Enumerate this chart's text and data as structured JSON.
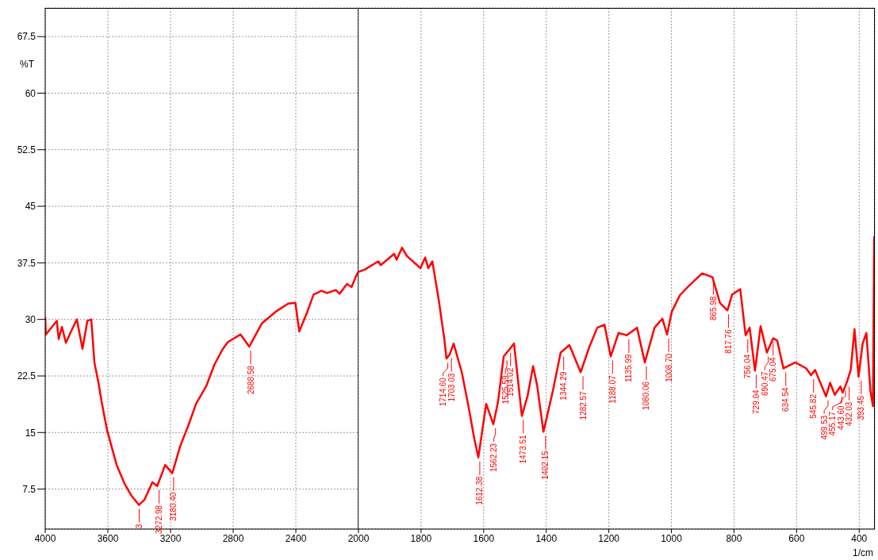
{
  "chart_data": [
    {
      "type": "line",
      "ylabel": "%T",
      "x": [
        4000,
        3996,
        3926,
        3914,
        3893,
        3868,
        3833,
        3798,
        3762,
        3731,
        3706,
        3696,
        3686,
        3660,
        3640,
        3605,
        3544,
        3493,
        3452,
        3402,
        3366,
        3316,
        3285,
        3234,
        3189,
        3138,
        3087,
        3037,
        2971,
        2920,
        2869,
        2834,
        2753,
        2697,
        2616,
        2530,
        2449,
        2403,
        2378,
        2327,
        2287,
        2236,
        2201,
        2145,
        2120,
        2074,
        2044,
        2010,
        2000
      ],
      "series": [
        {
          "color": "#ff0000",
          "values": [
            30.3,
            28,
            29.8,
            27.4,
            29,
            26.9,
            28.5,
            30,
            26.1,
            29.8,
            30,
            27.2,
            24.3,
            21.6,
            19.1,
            15.3,
            10.7,
            8.2,
            6.7,
            5.4,
            6.1,
            8.4,
            7.9,
            10.7,
            9.6,
            13.2,
            15.9,
            18.8,
            21.2,
            24,
            26,
            27,
            28,
            26.4,
            29.5,
            31,
            32.1,
            32.2,
            28.4,
            31,
            33.3,
            33.8,
            33.5,
            33.9,
            33.4,
            34.7,
            34.3,
            36,
            36.3
          ]
        }
      ],
      "xlim": [
        4000,
        2000
      ],
      "ylim": [
        2.2,
        71.3
      ],
      "xticks": [
        4000,
        3600,
        3200,
        2800,
        2400
      ],
      "yticks": [
        7.5,
        15,
        22.5,
        30,
        37.5,
        45,
        52.5,
        60,
        67.5
      ],
      "grid": true,
      "marker": "none",
      "line_style": "solid",
      "annotations": [
        {
          "text": "3",
          "x": 3400,
          "y": 5.4
        },
        {
          "text": "3272.98",
          "x": 3272.98,
          "y": 7.9
        },
        {
          "text": "3180.40",
          "x": 3180.4,
          "y": 9.6
        },
        {
          "text": "2688.58",
          "x": 2688.58,
          "y": 26.4
        }
      ]
    },
    {
      "type": "line",
      "xlabel": "1/cm",
      "tick_labels": "x",
      "x": [
        2000,
        1980,
        1937,
        1929,
        1886,
        1878,
        1861,
        1845,
        1802,
        1787,
        1777,
        1764,
        1744,
        1726,
        1719,
        1708,
        1696,
        1670,
        1650,
        1630,
        1617,
        1592,
        1569,
        1554,
        1536,
        1516,
        1503,
        1478,
        1460,
        1442,
        1429,
        1409,
        1379,
        1354,
        1326,
        1290,
        1262,
        1237,
        1214,
        1194,
        1169,
        1143,
        1110,
        1085,
        1054,
        1029,
        1014,
        999,
        973,
        948,
        920,
        902,
        869,
        845,
        821,
        806,
        780,
        763,
        750,
        733,
        715,
        695,
        675,
        662,
        642,
        604,
        569,
        554,
        541,
        506,
        493,
        478,
        460,
        453,
        440,
        427,
        415,
        402,
        389,
        377,
        364,
        356,
        352
      ],
      "series": [
        {
          "color": "#ff0000",
          "values": [
            36.3,
            36.6,
            37.7,
            37.2,
            38.7,
            37.9,
            39.5,
            38.4,
            36.8,
            38.2,
            36.8,
            37.7,
            32.7,
            27.5,
            24.8,
            25.4,
            26.8,
            23,
            18.8,
            14.2,
            11.7,
            18.8,
            16.1,
            19.1,
            25.1,
            26.1,
            26.8,
            17.2,
            19.8,
            23.8,
            21.2,
            15.1,
            20.5,
            25.6,
            26.6,
            23,
            26.4,
            28.9,
            29.3,
            25.1,
            28.2,
            27.9,
            28.9,
            24.3,
            28.9,
            30.1,
            28,
            31,
            33.2,
            34.3,
            35.4,
            36.1,
            35.6,
            32.2,
            31.2,
            33.3,
            34,
            27.9,
            28.9,
            23.2,
            29.1,
            25.6,
            27.5,
            27.2,
            23.5,
            24.3,
            23.5,
            22.6,
            23.3,
            19.8,
            21.6,
            20,
            21.1,
            20.3,
            21.6,
            23.3,
            28.7,
            22.4,
            26.8,
            28.2,
            20.5,
            18.5,
            41
          ]
        }
      ],
      "xlim": [
        2000,
        350
      ],
      "ylim": [
        2.2,
        71.3
      ],
      "xticks": [
        2000,
        1800,
        1600,
        1400,
        1200,
        1000,
        800,
        600,
        400
      ],
      "yticks": [
        7.5,
        15,
        22.5,
        30,
        37.5,
        45,
        52.5,
        60,
        67.5
      ],
      "grid": true,
      "marker": "none",
      "line_style": "solid",
      "annotations": [
        {
          "text": "1714.60",
          "x": 1714.6,
          "y": 24.8
        },
        {
          "text": "1703.03",
          "x": 1703.03,
          "y": 25.4
        },
        {
          "text": "1612.38",
          "x": 1612.38,
          "y": 11.7
        },
        {
          "text": "1562.23",
          "x": 1562.23,
          "y": 16.1
        },
        {
          "text": "1525.59",
          "x": 1525.59,
          "y": 25.1
        },
        {
          "text": "1514.02",
          "x": 1514.02,
          "y": 26.1
        },
        {
          "text": "1473.51",
          "x": 1473.51,
          "y": 17.2
        },
        {
          "text": "1402.15",
          "x": 1402.15,
          "y": 15.1
        },
        {
          "text": "1344.29",
          "x": 1344.29,
          "y": 25.6
        },
        {
          "text": "1282.57",
          "x": 1282.57,
          "y": 23
        },
        {
          "text": "1188.07",
          "x": 1188.07,
          "y": 25.1
        },
        {
          "text": "1135.99",
          "x": 1135.99,
          "y": 27.9
        },
        {
          "text": "1080.06",
          "x": 1080.06,
          "y": 24.3
        },
        {
          "text": "1008.70",
          "x": 1008.7,
          "y": 28
        },
        {
          "text": "865.98",
          "x": 865.98,
          "y": 35.6
        },
        {
          "text": "817.76",
          "x": 817.76,
          "y": 31.2
        },
        {
          "text": "756.04",
          "x": 756.04,
          "y": 27.9
        },
        {
          "text": "729.04",
          "x": 729.04,
          "y": 23.2
        },
        {
          "text": "690.47",
          "x": 690.47,
          "y": 25.6
        },
        {
          "text": "675.04",
          "x": 675.04,
          "y": 27.5
        },
        {
          "text": "634.54",
          "x": 634.54,
          "y": 23.5
        },
        {
          "text": "545.82",
          "x": 545.82,
          "y": 22.6
        },
        {
          "text": "499.53",
          "x": 499.53,
          "y": 19.8
        },
        {
          "text": "455.17",
          "x": 455.17,
          "y": 20.3
        },
        {
          "text": "443.60",
          "x": 443.6,
          "y": 21.1
        },
        {
          "text": "432.03",
          "x": 432.03,
          "y": 21.6
        },
        {
          "text": "393.45",
          "x": 393.45,
          "y": 22.4
        }
      ]
    }
  ]
}
